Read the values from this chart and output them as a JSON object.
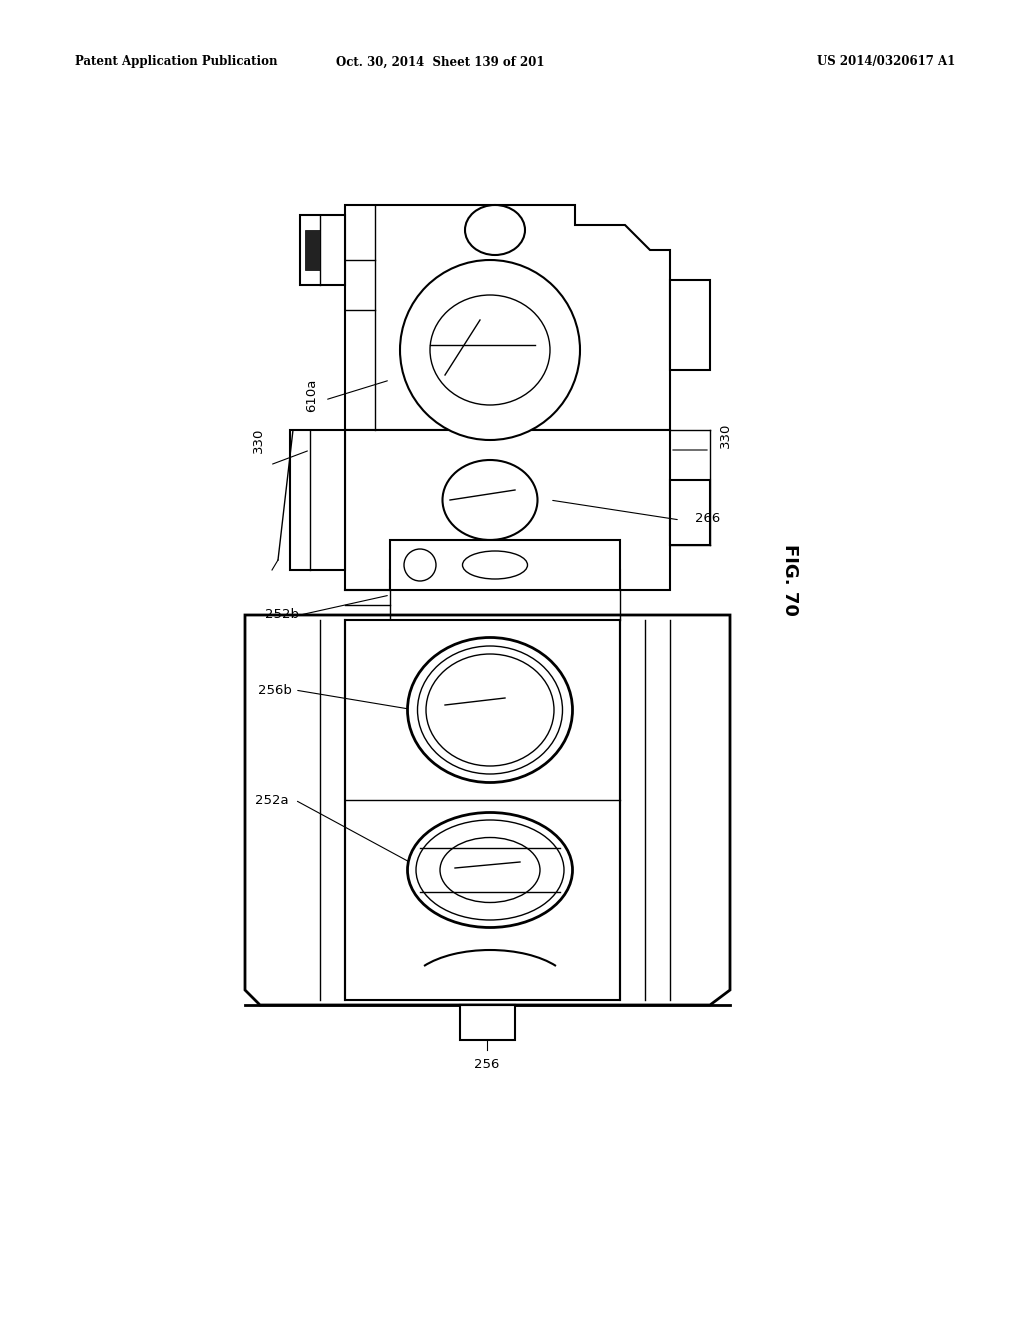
{
  "bg_color": "#ffffff",
  "line_color": "#000000",
  "header_left": "Patent Application Publication",
  "header_mid": "Oct. 30, 2014  Sheet 139 of 201",
  "header_right": "US 2014/0320617 A1",
  "fig_label": "FIG. 70"
}
